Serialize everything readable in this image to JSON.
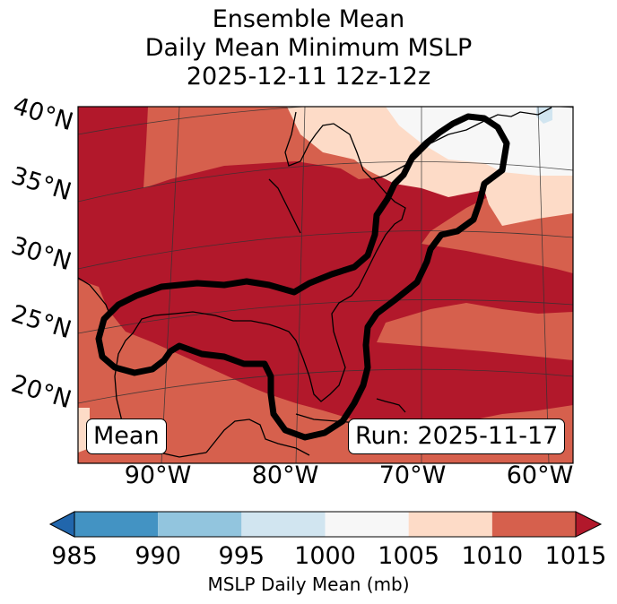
{
  "title": {
    "line1": "Ensemble Mean",
    "line2": "Daily Mean Minimum MSLP",
    "line3": "2025-12-11 12z-12z"
  },
  "map": {
    "lat_labels": [
      "40°N",
      "35°N",
      "30°N",
      "25°N",
      "20°N"
    ],
    "lon_labels": [
      "90°W",
      "80°W",
      "70°W",
      "60°W"
    ],
    "left_box": "Mean",
    "right_box": "Run: 2025-11-17",
    "field_colors": {
      "lt1015": "#dc5e4b",
      "ge1015": "#b2182b",
      "band1005": "#fcd7c3",
      "band1000": "#f5f5f5",
      "band995": "#d1e5f0"
    },
    "contour_color": "#000000"
  },
  "colorbar": {
    "ticks": [
      "985",
      "990",
      "995",
      "1000",
      "1005",
      "1010",
      "1015"
    ],
    "colors": [
      "#2166ac",
      "#4393c3",
      "#92c5de",
      "#d1e5f0",
      "#f7f7f7",
      "#fddbc7",
      "#d6604d",
      "#b2182b"
    ],
    "label": "MSLP Daily Mean (mb)"
  }
}
